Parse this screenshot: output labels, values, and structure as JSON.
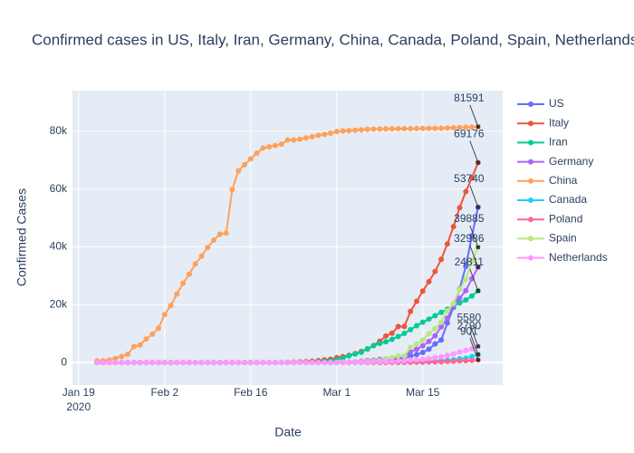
{
  "chart_data": {
    "type": "line",
    "title": "Confirmed cases in US, Italy, Iran, Germany, China, Canada, Poland, Spain, Netherlands",
    "x_label": "Date",
    "y_label": "Confirmed Cases",
    "x": [
      "2020-01-22",
      "2020-01-23",
      "2020-01-24",
      "2020-01-25",
      "2020-01-26",
      "2020-01-27",
      "2020-01-28",
      "2020-01-29",
      "2020-01-30",
      "2020-01-31",
      "2020-02-01",
      "2020-02-02",
      "2020-02-03",
      "2020-02-04",
      "2020-02-05",
      "2020-02-06",
      "2020-02-07",
      "2020-02-08",
      "2020-02-09",
      "2020-02-10",
      "2020-02-11",
      "2020-02-12",
      "2020-02-13",
      "2020-02-14",
      "2020-02-15",
      "2020-02-16",
      "2020-02-17",
      "2020-02-18",
      "2020-02-19",
      "2020-02-20",
      "2020-02-21",
      "2020-02-22",
      "2020-02-23",
      "2020-02-24",
      "2020-02-25",
      "2020-02-26",
      "2020-02-27",
      "2020-02-28",
      "2020-02-29",
      "2020-03-01",
      "2020-03-02",
      "2020-03-03",
      "2020-03-04",
      "2020-03-05",
      "2020-03-06",
      "2020-03-07",
      "2020-03-08",
      "2020-03-09",
      "2020-03-10",
      "2020-03-11",
      "2020-03-12",
      "2020-03-13",
      "2020-03-14",
      "2020-03-15",
      "2020-03-16",
      "2020-03-17",
      "2020-03-18",
      "2020-03-19",
      "2020-03-20",
      "2020-03-21",
      "2020-03-22",
      "2020-03-23",
      "2020-03-24"
    ],
    "xlim": [
      "2020-01-18",
      "2020-03-28"
    ],
    "xticks": [
      {
        "value": "2020-01-19",
        "label": "Jan 19"
      },
      {
        "value": "2020-02-02",
        "label": "Feb 2"
      },
      {
        "value": "2020-02-16",
        "label": "Feb 16"
      },
      {
        "value": "2020-03-01",
        "label": "Mar 1"
      },
      {
        "value": "2020-03-15",
        "label": "Mar 15"
      }
    ],
    "x_year_label": "2020",
    "ylim": [
      -7800,
      94100
    ],
    "yticks": [
      0,
      {
        "value": 20000,
        "label": "20k"
      },
      {
        "value": 40000,
        "label": "40k"
      },
      {
        "value": 60000,
        "label": "60k"
      },
      {
        "value": 80000,
        "label": "80k"
      }
    ],
    "grid": true,
    "legend": "right",
    "series": [
      {
        "name": "US",
        "color": "#636efa",
        "values": [
          1,
          1,
          2,
          2,
          5,
          5,
          5,
          5,
          5,
          7,
          8,
          8,
          11,
          11,
          11,
          11,
          11,
          11,
          11,
          11,
          12,
          12,
          13,
          13,
          13,
          13,
          13,
          13,
          13,
          13,
          15,
          15,
          15,
          51,
          51,
          57,
          58,
          60,
          68,
          74,
          98,
          118,
          149,
          217,
          262,
          402,
          518,
          583,
          959,
          1281,
          1663,
          2179,
          2727,
          3499,
          4632,
          6421,
          7786,
          13680,
          19101,
          25493,
          33276,
          43847,
          53740
        ]
      },
      {
        "name": "Italy",
        "color": "#EF553B",
        "values": [
          0,
          0,
          0,
          0,
          0,
          0,
          0,
          0,
          0,
          2,
          2,
          2,
          2,
          2,
          2,
          2,
          3,
          3,
          3,
          3,
          3,
          3,
          3,
          3,
          3,
          3,
          3,
          3,
          3,
          3,
          20,
          62,
          155,
          229,
          322,
          453,
          655,
          888,
          1128,
          1694,
          2036,
          2502,
          3089,
          3858,
          4636,
          5883,
          7375,
          9172,
          10149,
          12462,
          12462,
          17660,
          21157,
          24747,
          27980,
          31506,
          35713,
          41035,
          47021,
          53578,
          59138,
          63927,
          69176
        ]
      },
      {
        "name": "Iran",
        "color": "#00cc96",
        "values": [
          0,
          0,
          0,
          0,
          0,
          0,
          0,
          0,
          0,
          0,
          0,
          0,
          0,
          0,
          0,
          0,
          0,
          0,
          0,
          0,
          0,
          0,
          0,
          0,
          0,
          0,
          0,
          0,
          2,
          5,
          18,
          28,
          43,
          61,
          95,
          139,
          245,
          388,
          593,
          978,
          1501,
          2336,
          2922,
          3513,
          4747,
          5823,
          6566,
          7161,
          8042,
          9000,
          10075,
          11364,
          12729,
          13938,
          14991,
          16169,
          17361,
          18407,
          19644,
          20610,
          21638,
          23049,
          24811
        ]
      },
      {
        "name": "Germany",
        "color": "#ab63fa",
        "values": [
          0,
          0,
          0,
          0,
          0,
          1,
          4,
          4,
          4,
          5,
          8,
          10,
          12,
          12,
          12,
          12,
          13,
          13,
          14,
          14,
          16,
          16,
          16,
          16,
          16,
          16,
          16,
          16,
          16,
          16,
          16,
          16,
          16,
          16,
          17,
          27,
          46,
          48,
          79,
          130,
          159,
          196,
          262,
          482,
          670,
          799,
          1040,
          1176,
          1457,
          1908,
          2078,
          3675,
          4585,
          5795,
          7272,
          9257,
          12327,
          15320,
          19848,
          22213,
          24873,
          29056,
          32986
        ]
      },
      {
        "name": "China",
        "color": "#FFA15A",
        "values": [
          548,
          643,
          920,
          1406,
          2075,
          2877,
          5509,
          6087,
          8141,
          9802,
          11891,
          16630,
          19716,
          23707,
          27440,
          30587,
          34110,
          36814,
          39829,
          42354,
          44386,
          44759,
          59895,
          66358,
          68413,
          70513,
          72434,
          74211,
          74619,
          75077,
          75550,
          77001,
          77022,
          77241,
          77754,
          78166,
          78600,
          78928,
          79356,
          79932,
          80136,
          80261,
          80386,
          80537,
          80690,
          80770,
          80823,
          80860,
          80887,
          80921,
          80932,
          80945,
          80977,
          81003,
          81033,
          81058,
          81102,
          81156,
          81250,
          81305,
          81435,
          81498,
          81591
        ]
      },
      {
        "name": "Canada",
        "color": "#19d3f3",
        "values": [
          0,
          0,
          0,
          0,
          1,
          1,
          2,
          2,
          2,
          4,
          4,
          4,
          4,
          4,
          4,
          5,
          5,
          7,
          7,
          7,
          7,
          7,
          7,
          7,
          7,
          7,
          7,
          7,
          8,
          8,
          8,
          8,
          8,
          9,
          11,
          11,
          11,
          14,
          14,
          24,
          27,
          30,
          33,
          37,
          49,
          54,
          64,
          77,
          79,
          108,
          117,
          193,
          198,
          252,
          415,
          478,
          657,
          800,
          943,
          1277,
          1469,
          2088,
          2790
        ]
      },
      {
        "name": "Poland",
        "color": "#FF6692",
        "values": [
          0,
          0,
          0,
          0,
          0,
          0,
          0,
          0,
          0,
          0,
          0,
          0,
          0,
          0,
          0,
          0,
          0,
          0,
          0,
          0,
          0,
          0,
          0,
          0,
          0,
          0,
          0,
          0,
          0,
          0,
          0,
          0,
          0,
          0,
          0,
          0,
          0,
          0,
          0,
          0,
          0,
          0,
          1,
          1,
          5,
          5,
          11,
          16,
          22,
          31,
          49,
          68,
          103,
          119,
          177,
          238,
          251,
          355,
          425,
          536,
          634,
          749,
          901
        ]
      },
      {
        "name": "Spain",
        "color": "#B6E880",
        "values": [
          0,
          0,
          0,
          0,
          0,
          0,
          0,
          0,
          0,
          0,
          1,
          1,
          1,
          1,
          1,
          1,
          1,
          1,
          2,
          2,
          2,
          2,
          2,
          2,
          2,
          2,
          2,
          2,
          2,
          2,
          2,
          2,
          2,
          2,
          6,
          13,
          15,
          32,
          45,
          84,
          120,
          165,
          222,
          259,
          400,
          500,
          673,
          1073,
          1695,
          2277,
          2277,
          5232,
          6391,
          7798,
          9942,
          11748,
          13910,
          17963,
          20410,
          25374,
          28768,
          35136,
          39885
        ]
      },
      {
        "name": "Netherlands",
        "color": "#FF97FF",
        "values": [
          0,
          0,
          0,
          0,
          0,
          0,
          0,
          0,
          0,
          0,
          0,
          0,
          0,
          0,
          0,
          0,
          0,
          0,
          0,
          0,
          0,
          0,
          0,
          0,
          0,
          0,
          0,
          0,
          0,
          0,
          0,
          0,
          0,
          0,
          0,
          0,
          1,
          1,
          6,
          10,
          18,
          24,
          38,
          82,
          128,
          188,
          265,
          321,
          382,
          503,
          503,
          804,
          959,
          1135,
          1413,
          1705,
          2051,
          2460,
          2994,
          3631,
          4204,
          4749,
          5580
        ]
      }
    ]
  }
}
